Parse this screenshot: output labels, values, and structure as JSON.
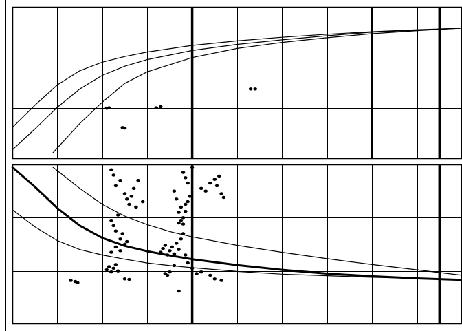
{
  "chart_data": [
    {
      "type": "line",
      "panel": "upper",
      "title": "",
      "xlabel": "",
      "ylabel": "",
      "xlim": [
        0,
        10
      ],
      "ylim": [
        0,
        3
      ],
      "grid": true,
      "legend": "none",
      "series": [
        {
          "style": "thin-curve",
          "x": [
            0,
            0.5,
            1,
            1.5,
            2,
            2.5,
            3,
            4,
            5,
            6,
            7,
            8,
            9,
            10
          ],
          "y": [
            0.62,
            1.06,
            1.46,
            1.74,
            1.91,
            2.02,
            2.11,
            2.24,
            2.33,
            2.4,
            2.46,
            2.51,
            2.55,
            2.58
          ]
        },
        {
          "style": "thin-curve",
          "x": [
            0,
            0.5,
            1,
            1.5,
            2,
            2.5,
            3,
            4,
            5,
            6,
            7,
            8,
            9,
            10
          ],
          "y": [
            0.18,
            0.59,
            1.02,
            1.38,
            1.65,
            1.83,
            1.96,
            2.14,
            2.26,
            2.35,
            2.43,
            2.5,
            2.54,
            2.58
          ]
        },
        {
          "style": "thin-curve",
          "x": [
            0.9,
            1.5,
            2,
            2.5,
            3,
            4,
            5,
            6,
            7,
            8,
            9,
            10
          ],
          "y": [
            0.12,
            0.7,
            1.12,
            1.49,
            1.72,
            2.0,
            2.18,
            2.3,
            2.39,
            2.47,
            2.53,
            2.58
          ]
        }
      ],
      "points": [
        {
          "x": 2.1,
          "y": 1.0
        },
        {
          "x": 2.15,
          "y": 1.01
        },
        {
          "x": 2.45,
          "y": 0.62
        },
        {
          "x": 2.5,
          "y": 0.61
        },
        {
          "x": 3.2,
          "y": 1.01
        },
        {
          "x": 3.3,
          "y": 1.03
        },
        {
          "x": 5.3,
          "y": 1.38
        },
        {
          "x": 5.4,
          "y": 1.38
        }
      ],
      "bold_vlines_x": [
        4,
        8,
        9.5
      ]
    },
    {
      "type": "scatter",
      "panel": "lower",
      "title": "",
      "xlabel": "",
      "ylabel": "",
      "xlim": [
        0,
        10
      ],
      "ylim": [
        0,
        3
      ],
      "grid": true,
      "legend": "none",
      "series": [
        {
          "style": "thick-curve",
          "x": [
            0,
            0.5,
            1,
            1.5,
            2,
            2.5,
            3,
            3.5,
            4,
            5,
            6,
            7,
            8,
            9,
            10
          ],
          "y": [
            2.95,
            2.58,
            2.18,
            1.85,
            1.62,
            1.47,
            1.37,
            1.29,
            1.22,
            1.11,
            1.02,
            0.95,
            0.9,
            0.86,
            0.83
          ]
        },
        {
          "style": "thin-curve",
          "x": [
            0.9,
            1.5,
            2,
            2.5,
            3,
            3.5,
            4,
            5,
            6,
            7,
            8,
            9,
            10
          ],
          "y": [
            2.95,
            2.55,
            2.25,
            2.03,
            1.87,
            1.74,
            1.64,
            1.48,
            1.35,
            1.23,
            1.12,
            1.02,
            0.92
          ]
        },
        {
          "style": "thin-curve",
          "x": [
            0,
            0.5,
            1,
            1.5,
            2,
            2.5,
            3,
            3.5,
            4,
            5,
            6,
            7,
            8,
            9,
            10
          ],
          "y": [
            2.15,
            1.83,
            1.57,
            1.4,
            1.3,
            1.22,
            1.15,
            1.1,
            1.06,
            0.99,
            0.94,
            0.91,
            0.88,
            0.86,
            0.84
          ]
        }
      ],
      "points": [
        {
          "x": 1.3,
          "y": 0.82
        },
        {
          "x": 1.4,
          "y": 0.8
        },
        {
          "x": 1.45,
          "y": 0.78
        },
        {
          "x": 2.2,
          "y": 2.9
        },
        {
          "x": 2.25,
          "y": 2.8
        },
        {
          "x": 2.3,
          "y": 2.6
        },
        {
          "x": 2.4,
          "y": 2.7
        },
        {
          "x": 2.5,
          "y": 2.45
        },
        {
          "x": 2.55,
          "y": 2.35
        },
        {
          "x": 2.6,
          "y": 2.25
        },
        {
          "x": 2.65,
          "y": 2.4
        },
        {
          "x": 2.7,
          "y": 2.55
        },
        {
          "x": 2.75,
          "y": 2.2
        },
        {
          "x": 2.8,
          "y": 2.7
        },
        {
          "x": 2.9,
          "y": 2.3
        },
        {
          "x": 2.2,
          "y": 1.95
        },
        {
          "x": 2.25,
          "y": 1.85
        },
        {
          "x": 2.3,
          "y": 1.75
        },
        {
          "x": 2.35,
          "y": 2.05
        },
        {
          "x": 2.4,
          "y": 1.6
        },
        {
          "x": 2.45,
          "y": 1.7
        },
        {
          "x": 2.5,
          "y": 1.5
        },
        {
          "x": 2.55,
          "y": 1.55
        },
        {
          "x": 2.2,
          "y": 1.35
        },
        {
          "x": 2.3,
          "y": 1.45
        },
        {
          "x": 2.4,
          "y": 1.38
        },
        {
          "x": 2.1,
          "y": 1.02
        },
        {
          "x": 2.15,
          "y": 1.08
        },
        {
          "x": 2.2,
          "y": 0.98
        },
        {
          "x": 2.25,
          "y": 1.05
        },
        {
          "x": 2.3,
          "y": 1.12
        },
        {
          "x": 2.35,
          "y": 1.0
        },
        {
          "x": 2.5,
          "y": 0.85
        },
        {
          "x": 2.6,
          "y": 0.84
        },
        {
          "x": 3.3,
          "y": 1.35
        },
        {
          "x": 3.35,
          "y": 1.42
        },
        {
          "x": 3.4,
          "y": 1.48
        },
        {
          "x": 3.45,
          "y": 1.3
        },
        {
          "x": 3.5,
          "y": 1.38
        },
        {
          "x": 3.55,
          "y": 1.45
        },
        {
          "x": 3.6,
          "y": 1.32
        },
        {
          "x": 3.65,
          "y": 1.52
        },
        {
          "x": 3.7,
          "y": 1.4
        },
        {
          "x": 3.75,
          "y": 1.6
        },
        {
          "x": 3.8,
          "y": 1.7
        },
        {
          "x": 3.85,
          "y": 1.3
        },
        {
          "x": 3.6,
          "y": 2.5
        },
        {
          "x": 3.65,
          "y": 2.35
        },
        {
          "x": 3.7,
          "y": 2.1
        },
        {
          "x": 3.75,
          "y": 2.2
        },
        {
          "x": 3.8,
          "y": 2.0
        },
        {
          "x": 3.85,
          "y": 2.25
        },
        {
          "x": 3.9,
          "y": 2.3
        },
        {
          "x": 3.95,
          "y": 2.4
        },
        {
          "x": 3.7,
          "y": 1.9
        },
        {
          "x": 3.75,
          "y": 1.95
        },
        {
          "x": 3.8,
          "y": 1.88
        },
        {
          "x": 3.85,
          "y": 2.12
        },
        {
          "x": 3.8,
          "y": 2.85
        },
        {
          "x": 3.85,
          "y": 2.75
        },
        {
          "x": 3.9,
          "y": 2.65
        },
        {
          "x": 4.0,
          "y": 2.95
        },
        {
          "x": 3.4,
          "y": 0.95
        },
        {
          "x": 3.45,
          "y": 0.92
        },
        {
          "x": 3.5,
          "y": 0.98
        },
        {
          "x": 3.6,
          "y": 1.1
        },
        {
          "x": 3.7,
          "y": 0.62
        },
        {
          "x": 3.9,
          "y": 1.15
        },
        {
          "x": 4.0,
          "y": 1.05
        },
        {
          "x": 4.1,
          "y": 0.95
        },
        {
          "x": 4.2,
          "y": 2.55
        },
        {
          "x": 4.3,
          "y": 2.5
        },
        {
          "x": 4.4,
          "y": 2.65
        },
        {
          "x": 4.5,
          "y": 2.72
        },
        {
          "x": 4.55,
          "y": 2.6
        },
        {
          "x": 4.6,
          "y": 2.78
        },
        {
          "x": 4.65,
          "y": 2.45
        },
        {
          "x": 4.7,
          "y": 2.38
        },
        {
          "x": 4.2,
          "y": 0.98
        },
        {
          "x": 4.4,
          "y": 0.92
        },
        {
          "x": 4.5,
          "y": 0.85
        },
        {
          "x": 4.65,
          "y": 0.82
        }
      ],
      "bold_vlines_x": [
        4,
        9.5
      ]
    }
  ]
}
